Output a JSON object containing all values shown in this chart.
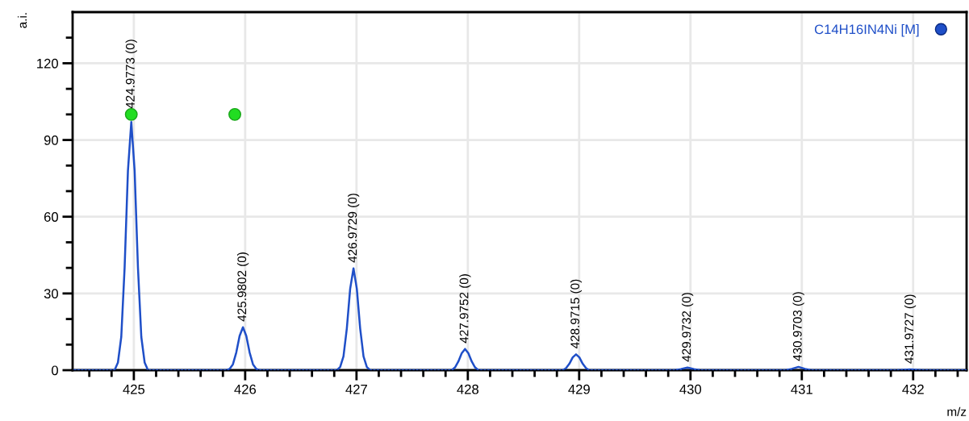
{
  "chart_data": {
    "type": "line",
    "xlabel": "m/z",
    "ylabel": "a.i.",
    "xlim": [
      424.45,
      432.48
    ],
    "ylim": [
      0,
      140
    ],
    "xticks": [
      {
        "value": 424.6,
        "label": null
      },
      {
        "value": 424.8,
        "label": null
      },
      425,
      {
        "value": 425.2,
        "label": null
      },
      {
        "value": 425.4,
        "label": null
      },
      {
        "value": 425.6,
        "label": null
      },
      {
        "value": 425.8,
        "label": null
      },
      426,
      {
        "value": 426.2,
        "label": null
      },
      {
        "value": 426.4,
        "label": null
      },
      {
        "value": 426.6,
        "label": null
      },
      {
        "value": 426.8,
        "label": null
      },
      427,
      {
        "value": 427.2,
        "label": null
      },
      {
        "value": 427.4,
        "label": null
      },
      {
        "value": 427.6,
        "label": null
      },
      {
        "value": 427.8,
        "label": null
      },
      428,
      {
        "value": 428.2,
        "label": null
      },
      {
        "value": 428.4,
        "label": null
      },
      {
        "value": 428.6,
        "label": null
      },
      {
        "value": 428.8,
        "label": null
      },
      429,
      {
        "value": 429.2,
        "label": null
      },
      {
        "value": 429.4,
        "label": null
      },
      {
        "value": 429.6,
        "label": null
      },
      {
        "value": 429.8,
        "label": null
      },
      430,
      {
        "value": 430.2,
        "label": null
      },
      {
        "value": 430.4,
        "label": null
      },
      {
        "value": 430.6,
        "label": null
      },
      {
        "value": 430.8,
        "label": null
      },
      431,
      {
        "value": 431.2,
        "label": null
      },
      {
        "value": 431.4,
        "label": null
      },
      {
        "value": 431.6,
        "label": null
      },
      {
        "value": 431.8,
        "label": null
      },
      432,
      {
        "value": 432.2,
        "label": null
      },
      {
        "value": 432.4,
        "label": null
      }
    ],
    "yticks": [
      0,
      {
        "value": 10,
        "label": null
      },
      {
        "value": 20,
        "label": null
      },
      30,
      {
        "value": 40,
        "label": null
      },
      {
        "value": 50,
        "label": null
      },
      60,
      {
        "value": 70,
        "label": null
      },
      {
        "value": 80,
        "label": null
      },
      90,
      {
        "value": 100,
        "label": null
      },
      {
        "value": 110,
        "label": null
      },
      120,
      {
        "value": 130,
        "label": null
      }
    ],
    "grid": true,
    "legend": "top right",
    "marker": "none",
    "line_style": "solid",
    "series": [
      {
        "name": "C14H16IN4Ni [M]",
        "color": "#1f4fc8",
        "x": [
          424.45,
          424.827,
          424.857,
          424.887,
          424.917,
          424.947,
          424.977,
          425.007,
          425.037,
          425.067,
          425.097,
          425.127,
          425.83,
          425.86,
          425.89,
          425.92,
          425.95,
          425.98,
          426.01,
          426.04,
          426.07,
          426.1,
          426.13,
          426.823,
          426.853,
          426.883,
          426.913,
          426.943,
          426.973,
          427.003,
          427.033,
          427.063,
          427.093,
          427.123,
          427.855,
          427.885,
          427.915,
          427.945,
          427.975,
          428.005,
          428.035,
          428.065,
          428.095,
          428.852,
          428.882,
          428.912,
          428.942,
          428.972,
          429.002,
          429.032,
          429.062,
          429.092,
          429.853,
          429.913,
          429.973,
          430.033,
          430.093,
          430.85,
          430.91,
          430.97,
          431.03,
          431.09,
          431.853,
          431.973,
          432.093,
          432.48
        ],
        "values": [
          0,
          0,
          3,
          13,
          40,
          78,
          97,
          78,
          40,
          13,
          3,
          0,
          0,
          0.5,
          2.3,
          6.9,
          13.4,
          16.8,
          13.4,
          6.9,
          2.3,
          0.5,
          0,
          0,
          1.2,
          5.4,
          16.3,
          31.8,
          39.8,
          31.8,
          16.3,
          5.4,
          1.2,
          0,
          0,
          1.1,
          3.4,
          6.6,
          8.3,
          6.6,
          3.4,
          1.1,
          0,
          0,
          0.8,
          2.5,
          5,
          6.2,
          5,
          2.5,
          0.8,
          0,
          0,
          0.4,
          1,
          0.4,
          0,
          0,
          0.5,
          1.3,
          0.5,
          0,
          0,
          0.3,
          0,
          0
        ]
      },
      {
        "type": "scatter",
        "color": "#22dd22",
        "marker": "circle",
        "x": [
          424.977,
          425.907
        ],
        "values": [
          100,
          100
        ]
      }
    ],
    "ref_lines": [
      {
        "axis": "y",
        "value": 0,
        "color": "#000000",
        "line_style": "dotted"
      }
    ],
    "annotations": [
      {
        "text": "424.9773 (0)",
        "x": 424.977,
        "y": 100
      },
      {
        "text": "425.9802 (0)",
        "x": 425.98,
        "y": 16.8
      },
      {
        "text": "426.9729 (0)",
        "x": 426.973,
        "y": 39.8
      },
      {
        "text": "427.9752 (0)",
        "x": 427.975,
        "y": 8.3
      },
      {
        "text": "428.9715 (0)",
        "x": 428.972,
        "y": 6.2
      },
      {
        "text": "429.9732 (0)",
        "x": 429.973,
        "y": 1
      },
      {
        "text": "430.9703 (0)",
        "x": 430.97,
        "y": 1.3
      },
      {
        "text": "431.9727 (0)",
        "x": 431.973,
        "y": 0.3
      }
    ]
  }
}
